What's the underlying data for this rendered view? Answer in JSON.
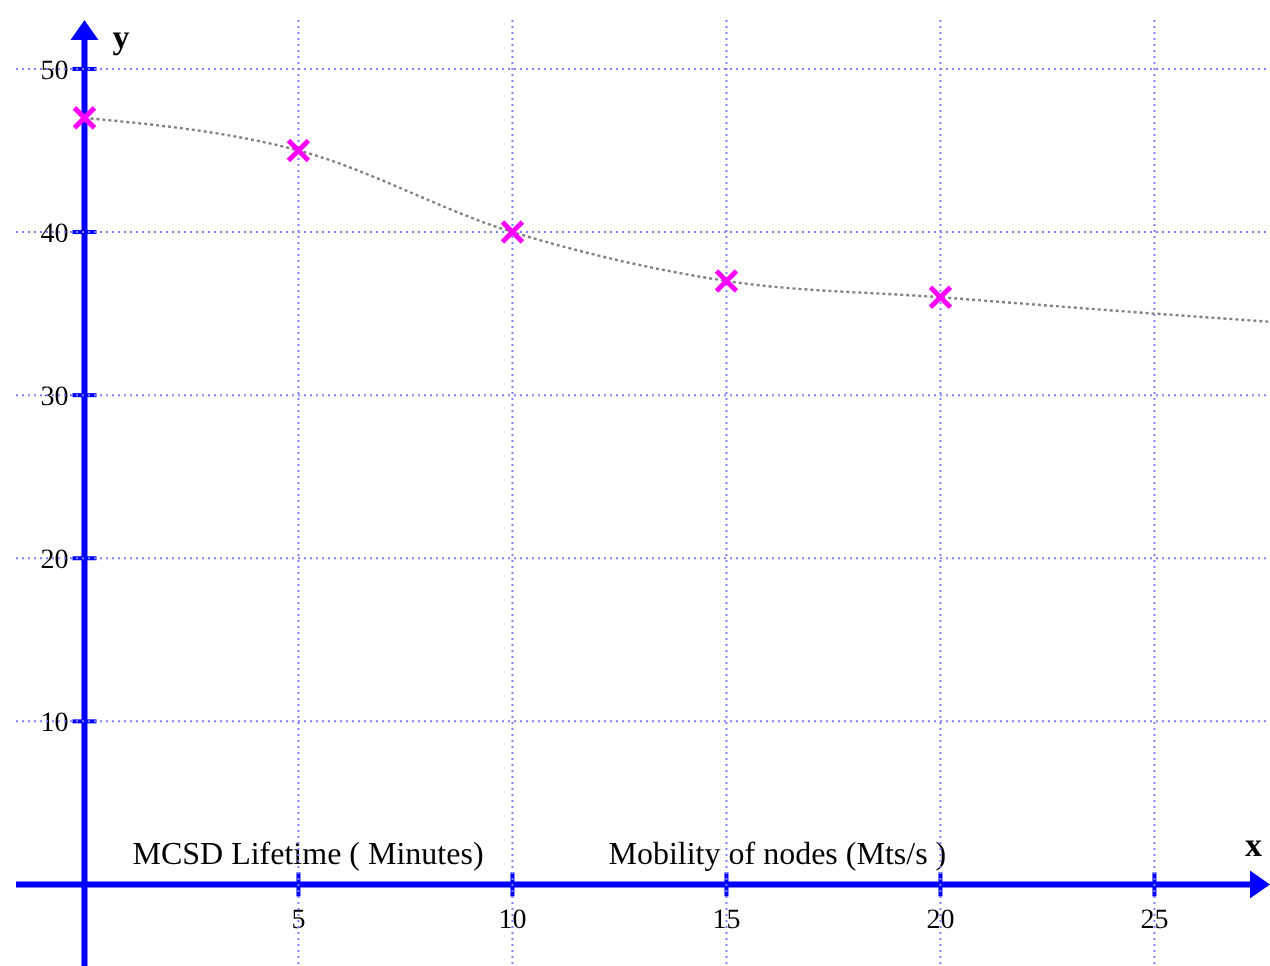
{
  "chart_data": {
    "type": "scatter",
    "xlabel": "Mobility of nodes (Mts/s )",
    "ylabel": "MCSD Lifetime ( Minutes)",
    "annotations": [
      "y",
      "x"
    ],
    "x": [
      0,
      5,
      10,
      15,
      20
    ],
    "series": [
      {
        "type": "scatter",
        "color": "#ff00ff",
        "marker": "cross",
        "values": [
          47,
          45,
          40,
          37,
          36
        ]
      },
      {
        "type": "line",
        "color": "#808080",
        "marker": "none",
        "line_style": "dotted",
        "x": [
          0,
          5,
          10,
          15,
          20,
          25,
          27.7
        ],
        "values": [
          47,
          45,
          40,
          37,
          36,
          35,
          34.5
        ]
      }
    ],
    "xlim": [
      -1.6,
      27.7
    ],
    "ylim": [
      -5,
      53
    ],
    "xticks": [
      5,
      10,
      15,
      20,
      25
    ],
    "yticks": [
      10,
      20,
      30,
      40,
      50
    ],
    "grid": true
  }
}
